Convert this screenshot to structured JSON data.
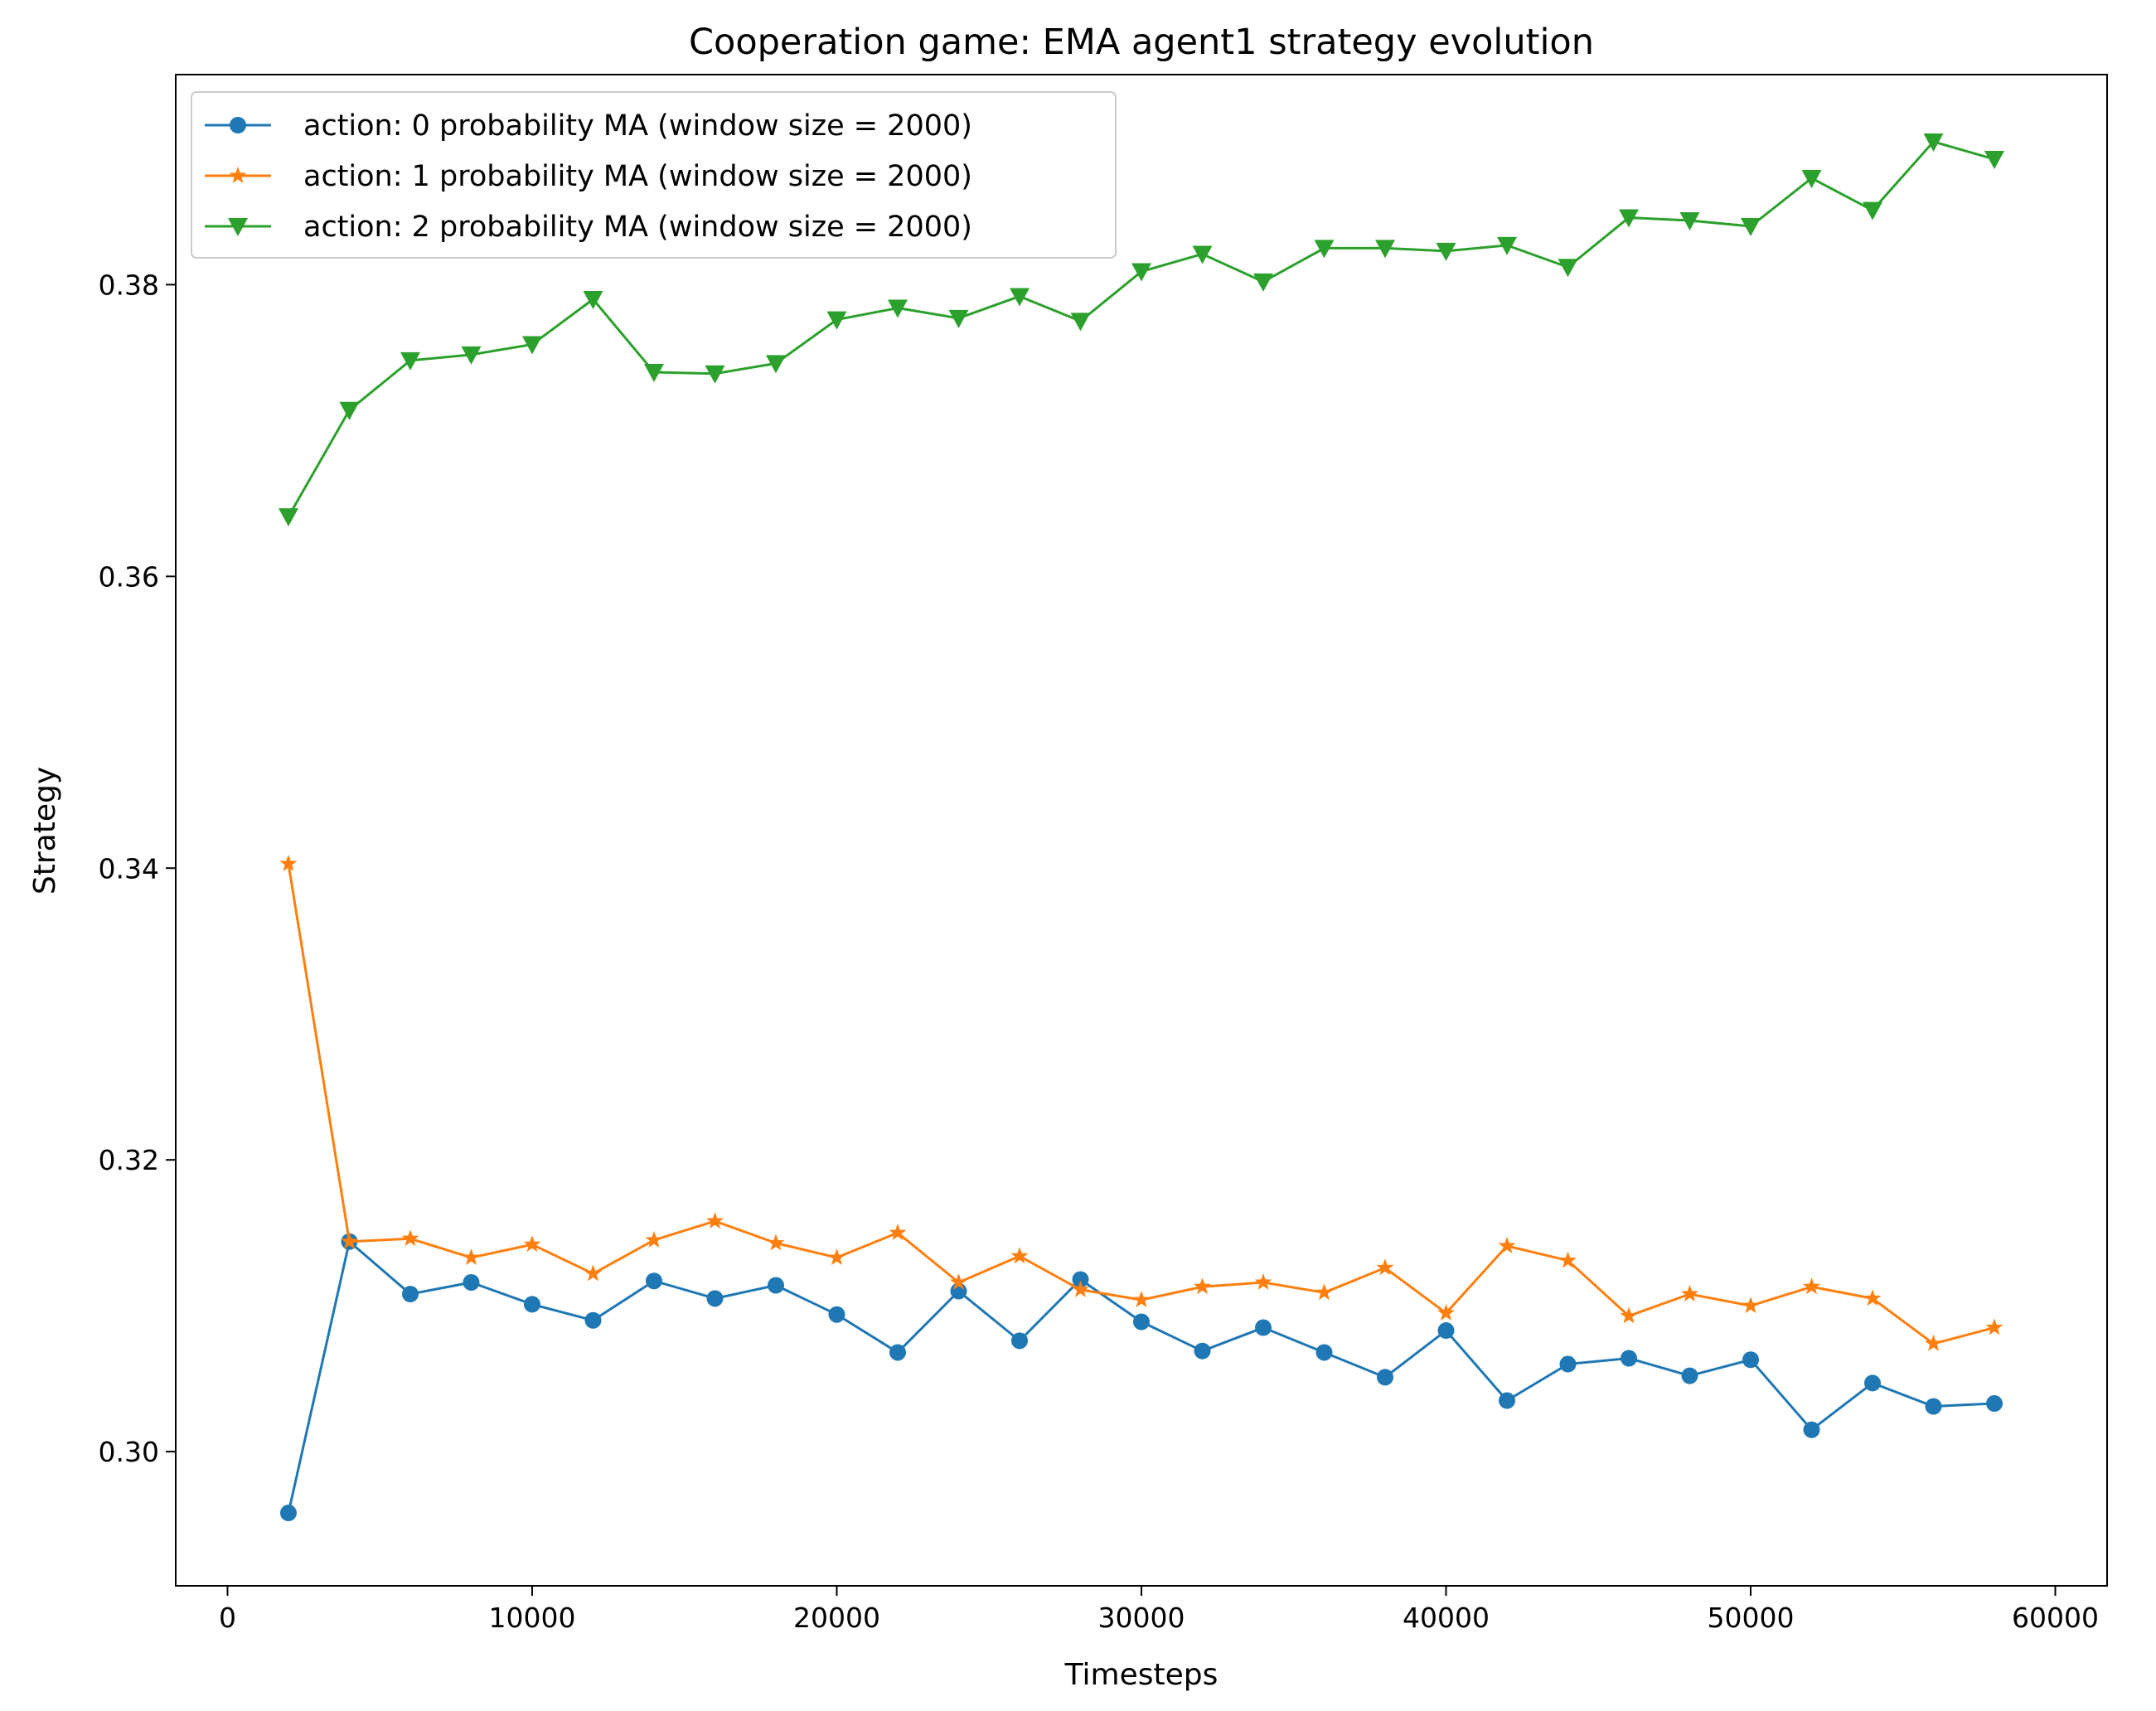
{
  "chart_data": {
    "type": "line",
    "title": "Cooperation game: EMA agent1 strategy evolution",
    "xlabel": "Timesteps",
    "ylabel": "Strategy",
    "xlim": [
      -1700,
      61700
    ],
    "ylim": [
      0.2908,
      0.3944
    ],
    "xticks": [
      0,
      10000,
      20000,
      30000,
      40000,
      50000,
      60000
    ],
    "xtick_labels": [
      "0",
      "10000",
      "20000",
      "30000",
      "40000",
      "50000",
      "60000"
    ],
    "yticks": [
      0.3,
      0.32,
      0.34,
      0.36,
      0.38
    ],
    "ytick_labels": [
      "0.30",
      "0.32",
      "0.34",
      "0.36",
      "0.38"
    ],
    "grid": false,
    "legend_position": "top-left",
    "x": [
      2000,
      4000,
      6000,
      8000,
      10000,
      12000,
      14000,
      16000,
      18000,
      20000,
      22000,
      24000,
      26000,
      28000,
      30000,
      32000,
      34000,
      36000,
      38000,
      40000,
      42000,
      44000,
      46000,
      48000,
      50000,
      52000,
      54000,
      56000,
      58000
    ],
    "series": [
      {
        "name": "action: 0 probability MA (window size = 2000)",
        "color": "#1f77b4",
        "marker": "circle",
        "values": [
          0.2958,
          0.3144,
          0.3108,
          0.3116,
          0.3101,
          0.309,
          0.3117,
          0.3105,
          0.3114,
          0.3094,
          0.3068,
          0.311,
          0.3076,
          0.3118,
          0.3089,
          0.3069,
          0.3085,
          0.3068,
          0.3051,
          0.3083,
          0.3035,
          0.306,
          0.3064,
          0.3052,
          0.3063,
          0.3015,
          0.3047,
          0.3031,
          0.3033
        ]
      },
      {
        "name": "action: 1 probability MA (window size = 2000)",
        "color": "#ff7f0e",
        "marker": "star",
        "values": [
          0.3403,
          0.3144,
          0.3146,
          0.3133,
          0.3142,
          0.3122,
          0.3145,
          0.3158,
          0.3143,
          0.3133,
          0.315,
          0.3116,
          0.3134,
          0.3111,
          0.3104,
          0.3113,
          0.3116,
          0.3109,
          0.3126,
          0.3095,
          0.3141,
          0.3131,
          0.3093,
          0.3108,
          0.31,
          0.3113,
          0.3105,
          0.3074,
          0.3085
        ]
      },
      {
        "name": "action: 2 probability MA (window size = 2000)",
        "color": "#2ca02c",
        "marker": "triangle-down",
        "values": [
          0.3641,
          0.3714,
          0.3748,
          0.3752,
          0.3759,
          0.379,
          0.374,
          0.3739,
          0.3746,
          0.3776,
          0.3784,
          0.3777,
          0.3792,
          0.3775,
          0.3809,
          0.3821,
          0.3802,
          0.3825,
          0.3825,
          0.3823,
          0.3827,
          0.3812,
          0.3846,
          0.3844,
          0.384,
          0.3873,
          0.3851,
          0.3898,
          0.3886
        ]
      }
    ]
  }
}
